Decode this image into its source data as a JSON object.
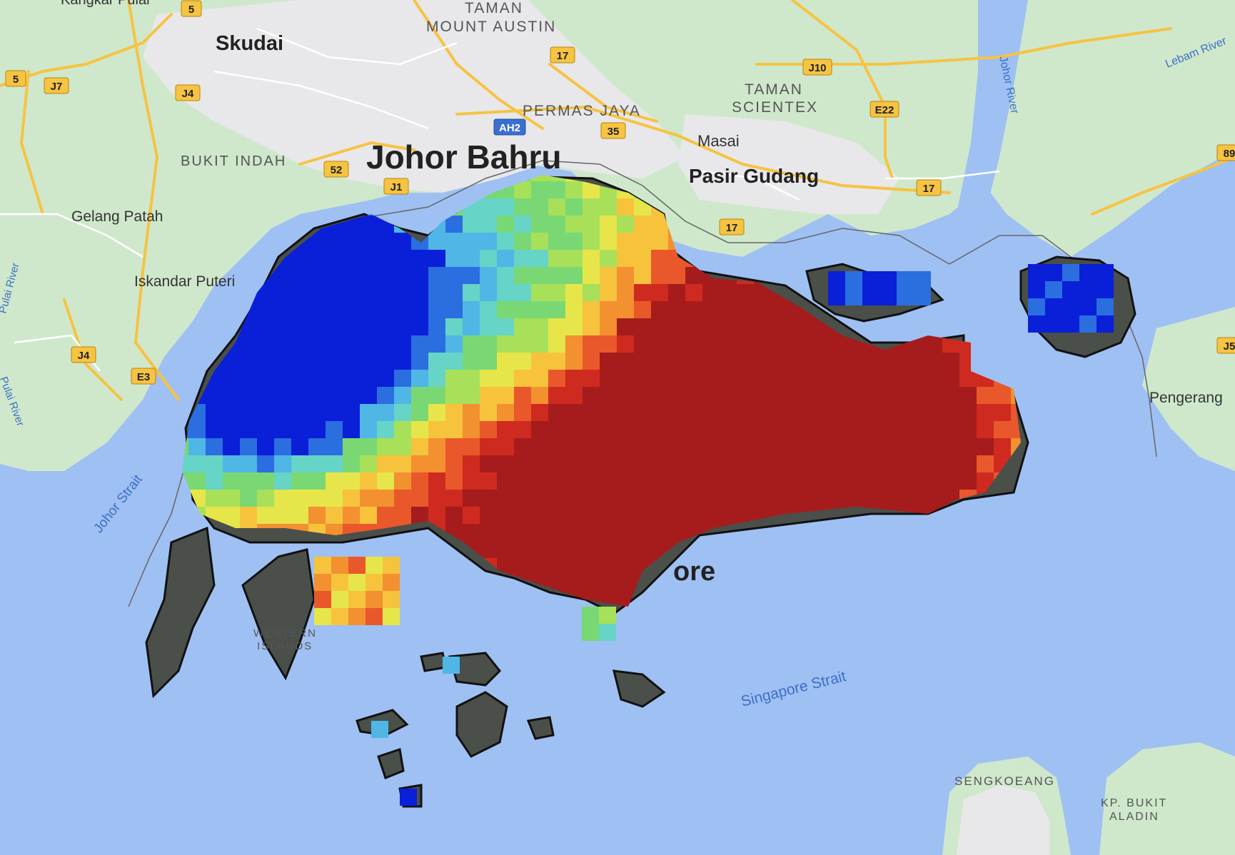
{
  "places": {
    "johor_bahru": "Johor Bahru",
    "skudai": "Skudai",
    "taman_mount_austin_1": "TAMAN",
    "taman_mount_austin_2": "MOUNT AUSTIN",
    "permas_jaya": "PERMAS JAYA",
    "taman_scientex_1": "TAMAN",
    "taman_scientex_2": "SCIENTEX",
    "masai": "Masai",
    "pasir_gudang": "Pasir Gudang",
    "bukit_indah": "BUKIT INDAH",
    "gelang_patah": "Gelang Patah",
    "iskandar_puteri": "Iskandar Puteri",
    "kangkar_pulai": "Kangkar Pulai",
    "pengerang": "Pengerang",
    "sengkoeang": "SENGKOEANG",
    "kp_bukit_aladin_1": "KP. BUKIT",
    "kp_bukit_aladin_2": "ALADIN",
    "western_islands_1": "WESTERN",
    "western_islands_2": "ISLANDS",
    "singapore_fragment": "ore"
  },
  "water": {
    "johor_strait": "Johor Strait",
    "singapore_strait": "Singapore Strait",
    "johor_river": "Johor River",
    "lebam_river": "Lebam River",
    "pulai_river": "Pulai River",
    "pulai_river_2": "Pulai River"
  },
  "roads": {
    "r5a": "5",
    "r5b": "5",
    "j7": "J7",
    "j4a": "J4",
    "j4b": "J4",
    "e3": "E3",
    "r52": "52",
    "j1": "J1",
    "r17a": "17",
    "ah2": "AH2",
    "r35": "35",
    "j10": "J10",
    "e22": "E22",
    "r17b": "17",
    "r17c": "17",
    "r89": "89",
    "j5": "J5"
  },
  "colors": {
    "water": "#9fc0f3",
    "land": "#cfe8cc",
    "urban": "#e8e8ea",
    "road": "#f6c343",
    "outline": "#1a1a1a",
    "masked": "#4a4f4a",
    "heat_scale": [
      "#0a1fd8",
      "#2a6ee0",
      "#4fb6e6",
      "#66d4c6",
      "#79d873",
      "#a8e05a",
      "#e6e64a",
      "#f7c33c",
      "#f39030",
      "#e9582a",
      "#cf2a20",
      "#a61c1c"
    ]
  }
}
